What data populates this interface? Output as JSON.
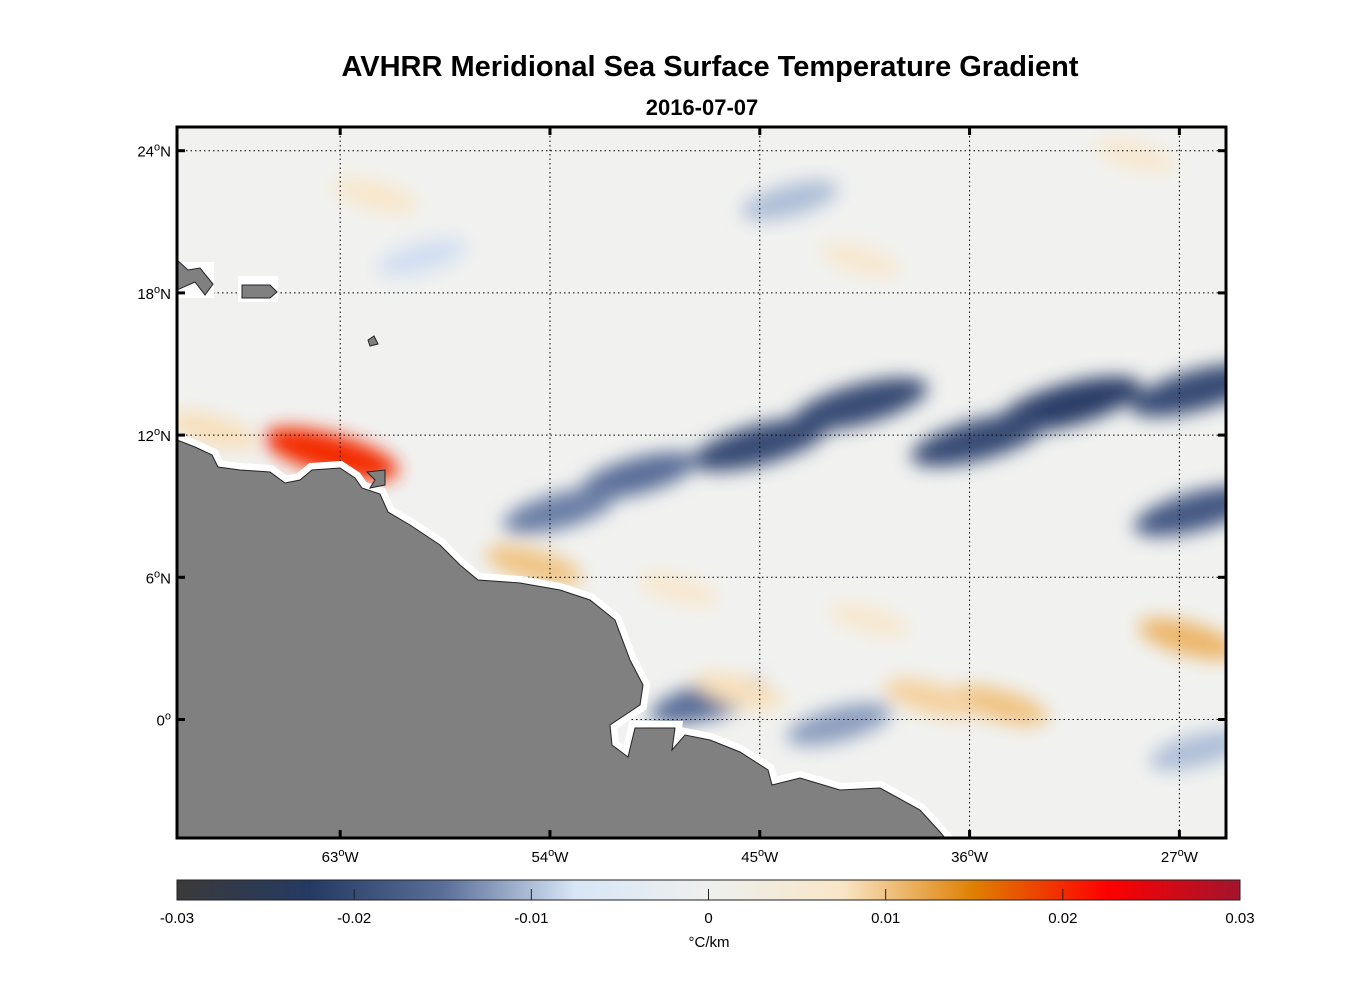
{
  "chart_data": {
    "type": "heatmap",
    "title": "AVHRR Meridional Sea Surface Temperature Gradient",
    "subtitle": "2016-07-07",
    "lon_range": [
      -70,
      -25
    ],
    "lat_range": [
      -5,
      25
    ],
    "grid": true,
    "x_ticks": [
      {
        "value": -63,
        "label": "63",
        "suffix": "W"
      },
      {
        "value": -54,
        "label": "54",
        "suffix": "W"
      },
      {
        "value": -45,
        "label": "45",
        "suffix": "W"
      },
      {
        "value": -36,
        "label": "36",
        "suffix": "W"
      },
      {
        "value": -27,
        "label": "27",
        "suffix": "W"
      }
    ],
    "y_ticks": [
      {
        "value": 24,
        "label": "24",
        "suffix": "N"
      },
      {
        "value": 18,
        "label": "18",
        "suffix": "N"
      },
      {
        "value": 12,
        "label": "12",
        "suffix": "N"
      },
      {
        "value": 6,
        "label": "6",
        "suffix": "N"
      },
      {
        "value": 0,
        "label": "0",
        "suffix": ""
      }
    ],
    "degree_symbol": "o",
    "colorbar": {
      "range": [
        -0.03,
        0.03
      ],
      "ticks": [
        "-0.03",
        "-0.02",
        "-0.01",
        "0",
        "0.01",
        "0.02",
        "0.03"
      ],
      "label": "°C/km",
      "stops": [
        "#3a3a3a",
        "#253a63",
        "#5a6e98",
        "#d8e6f7",
        "#eef0ee",
        "#f9e6c8",
        "#de7f00",
        "#fe0000",
        "#a3142e"
      ]
    },
    "features": [
      {
        "lon": -45.0,
        "lat": 11.6,
        "value": -0.02
      },
      {
        "lon": -40.7,
        "lat": 13.3,
        "value": -0.02
      },
      {
        "lon": -31.7,
        "lat": 13.3,
        "value": -0.022
      },
      {
        "lon": -35.6,
        "lat": 11.8,
        "value": -0.02
      },
      {
        "lon": -26.2,
        "lat": 13.9,
        "value": -0.02
      },
      {
        "lon": -50.2,
        "lat": 10.3,
        "value": -0.015
      },
      {
        "lon": -53.6,
        "lat": 8.8,
        "value": -0.014
      },
      {
        "lon": -26.2,
        "lat": 8.8,
        "value": -0.018
      },
      {
        "lon": -47.2,
        "lat": 0.8,
        "value": -0.015
      },
      {
        "lon": -41.6,
        "lat": -0.2,
        "value": -0.012
      },
      {
        "lon": -43.7,
        "lat": 21.9,
        "value": -0.01
      },
      {
        "lon": -26.2,
        "lat": -1.3,
        "value": -0.01
      },
      {
        "lon": -59.5,
        "lat": 19.5,
        "value": -0.008
      },
      {
        "lon": -63.4,
        "lat": 11.2,
        "value": 0.02
      },
      {
        "lon": -54.7,
        "lat": 6.5,
        "value": 0.01
      },
      {
        "lon": -34.7,
        "lat": 0.6,
        "value": 0.01
      },
      {
        "lon": -26.6,
        "lat": 3.4,
        "value": 0.011
      },
      {
        "lon": -37.7,
        "lat": 0.9,
        "value": 0.009
      },
      {
        "lon": -45.9,
        "lat": 1.2,
        "value": 0.008
      },
      {
        "lon": -40.7,
        "lat": 19.4,
        "value": 0.006
      },
      {
        "lon": -28.9,
        "lat": 23.8,
        "value": 0.006
      },
      {
        "lon": -40.3,
        "lat": 4.2,
        "value": 0.006
      },
      {
        "lon": -61.5,
        "lat": 22.1,
        "value": 0.007
      },
      {
        "lon": -68.5,
        "lat": 12.2,
        "value": 0.008
      },
      {
        "lon": -48.5,
        "lat": 5.5,
        "value": 0.006
      }
    ]
  }
}
